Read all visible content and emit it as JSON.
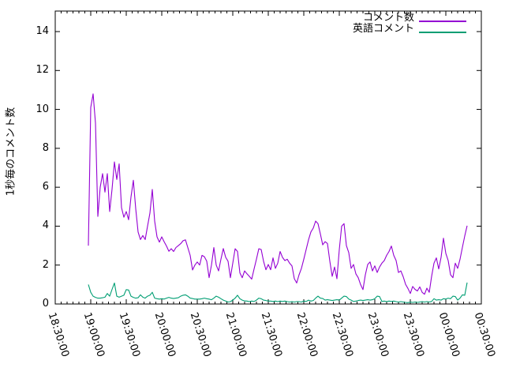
{
  "figure": {
    "background": "#ffffff",
    "border_color": "#000000",
    "ylabel": "1秒毎のコメント数"
  },
  "legend": {
    "position": "top-right-inside",
    "entries": [
      {
        "label": "コメント数",
        "color": "#9400d3"
      },
      {
        "label": "英語コメント",
        "color": "#009e73"
      }
    ]
  },
  "chart_data": {
    "type": "line",
    "title": "",
    "xlabel": "",
    "ylabel": "1秒毎のコメント数",
    "grid": false,
    "ylim": [
      0,
      15
    ],
    "y_ticks": [
      "0",
      "2",
      "4",
      "6",
      "8",
      "10",
      "12",
      "14"
    ],
    "x_tick_labels": [
      "18:30:00",
      "19:00:00",
      "19:30:00",
      "20:00:00",
      "20:30:00",
      "21:00:00",
      "21:30:00",
      "22:00:00",
      "22:30:00",
      "23:00:00",
      "23:30:00",
      "00:00:00",
      "00:30:00"
    ],
    "x_major_interval_minutes": 30,
    "x_minor_interval_minutes": 5,
    "series": [
      {
        "name": "コメント数",
        "color": "#9400d3",
        "start_time": "18:58",
        "interval_minutes": 2,
        "values": [
          3.0,
          10.1,
          10.8,
          9.3,
          4.5,
          6.0,
          6.7,
          5.75,
          6.7,
          4.75,
          5.9,
          7.3,
          6.4,
          7.2,
          4.95,
          4.46,
          4.75,
          4.33,
          5.5,
          6.36,
          4.9,
          3.7,
          3.31,
          3.52,
          3.31,
          4.0,
          4.67,
          5.89,
          4.26,
          3.45,
          3.18,
          3.45,
          3.2,
          2.98,
          2.71,
          2.84,
          2.7,
          2.9,
          3.0,
          3.1,
          3.25,
          3.3,
          2.9,
          2.5,
          1.75,
          2.0,
          2.16,
          2.0,
          2.5,
          2.43,
          2.2,
          1.35,
          2.0,
          2.9,
          2.0,
          1.7,
          2.3,
          2.85,
          2.4,
          2.2,
          1.35,
          2.1,
          2.84,
          2.7,
          1.6,
          1.35,
          1.7,
          1.55,
          1.42,
          1.28,
          1.8,
          2.3,
          2.84,
          2.8,
          2.2,
          1.76,
          2.03,
          1.76,
          2.37,
          1.83,
          2.1,
          2.7,
          2.4,
          2.23,
          2.3,
          2.1,
          1.96,
          1.3,
          1.08,
          1.5,
          1.83,
          2.3,
          2.8,
          3.3,
          3.7,
          3.9,
          4.26,
          4.13,
          3.6,
          3.04,
          3.2,
          3.11,
          2.2,
          1.42,
          1.9,
          1.3,
          2.8,
          4.0,
          4.13,
          3.0,
          2.64,
          1.83,
          2.03,
          1.55,
          1.35,
          1.0,
          0.74,
          1.5,
          2.03,
          2.16,
          1.7,
          1.96,
          1.62,
          1.9,
          2.1,
          2.23,
          2.5,
          2.7,
          2.98,
          2.5,
          2.23,
          1.62,
          1.7,
          1.4,
          1.01,
          0.8,
          0.54,
          0.9,
          0.75,
          0.67,
          0.88,
          0.6,
          0.5,
          0.81,
          0.6,
          1.42,
          2.1,
          2.37,
          1.8,
          2.4,
          3.38,
          2.6,
          2.23,
          1.5,
          1.35,
          2.1,
          1.83,
          2.3,
          2.91,
          3.5,
          4.02
        ]
      },
      {
        "name": "英語コメント",
        "color": "#009e73",
        "start_time": "18:58",
        "interval_minutes": 2,
        "values": [
          1.0,
          0.6,
          0.4,
          0.34,
          0.3,
          0.3,
          0.32,
          0.35,
          0.54,
          0.4,
          0.75,
          1.08,
          0.4,
          0.35,
          0.4,
          0.45,
          0.74,
          0.72,
          0.4,
          0.34,
          0.3,
          0.32,
          0.47,
          0.35,
          0.3,
          0.4,
          0.45,
          0.6,
          0.3,
          0.27,
          0.25,
          0.27,
          0.25,
          0.3,
          0.34,
          0.3,
          0.28,
          0.3,
          0.32,
          0.4,
          0.45,
          0.47,
          0.4,
          0.3,
          0.28,
          0.25,
          0.25,
          0.25,
          0.27,
          0.3,
          0.27,
          0.25,
          0.22,
          0.3,
          0.4,
          0.35,
          0.27,
          0.2,
          0.15,
          0.1,
          0.12,
          0.2,
          0.3,
          0.45,
          0.27,
          0.2,
          0.16,
          0.15,
          0.12,
          0.15,
          0.13,
          0.2,
          0.3,
          0.27,
          0.2,
          0.18,
          0.15,
          0.15,
          0.13,
          0.15,
          0.12,
          0.15,
          0.13,
          0.15,
          0.12,
          0.1,
          0.12,
          0.1,
          0.12,
          0.12,
          0.1,
          0.15,
          0.13,
          0.2,
          0.15,
          0.18,
          0.3,
          0.4,
          0.3,
          0.28,
          0.2,
          0.22,
          0.2,
          0.18,
          0.2,
          0.22,
          0.2,
          0.3,
          0.4,
          0.38,
          0.25,
          0.2,
          0.13,
          0.15,
          0.18,
          0.2,
          0.18,
          0.2,
          0.22,
          0.2,
          0.22,
          0.27,
          0.4,
          0.38,
          0.13,
          0.15,
          0.12,
          0.15,
          0.13,
          0.15,
          0.12,
          0.1,
          0.12,
          0.1,
          0.08,
          0.07,
          0.1,
          0.08,
          0.1,
          0.08,
          0.1,
          0.12,
          0.1,
          0.12,
          0.1,
          0.13,
          0.27,
          0.2,
          0.22,
          0.2,
          0.27,
          0.25,
          0.3,
          0.27,
          0.4,
          0.38,
          0.2,
          0.3,
          0.47,
          0.45,
          1.1
        ]
      }
    ]
  }
}
